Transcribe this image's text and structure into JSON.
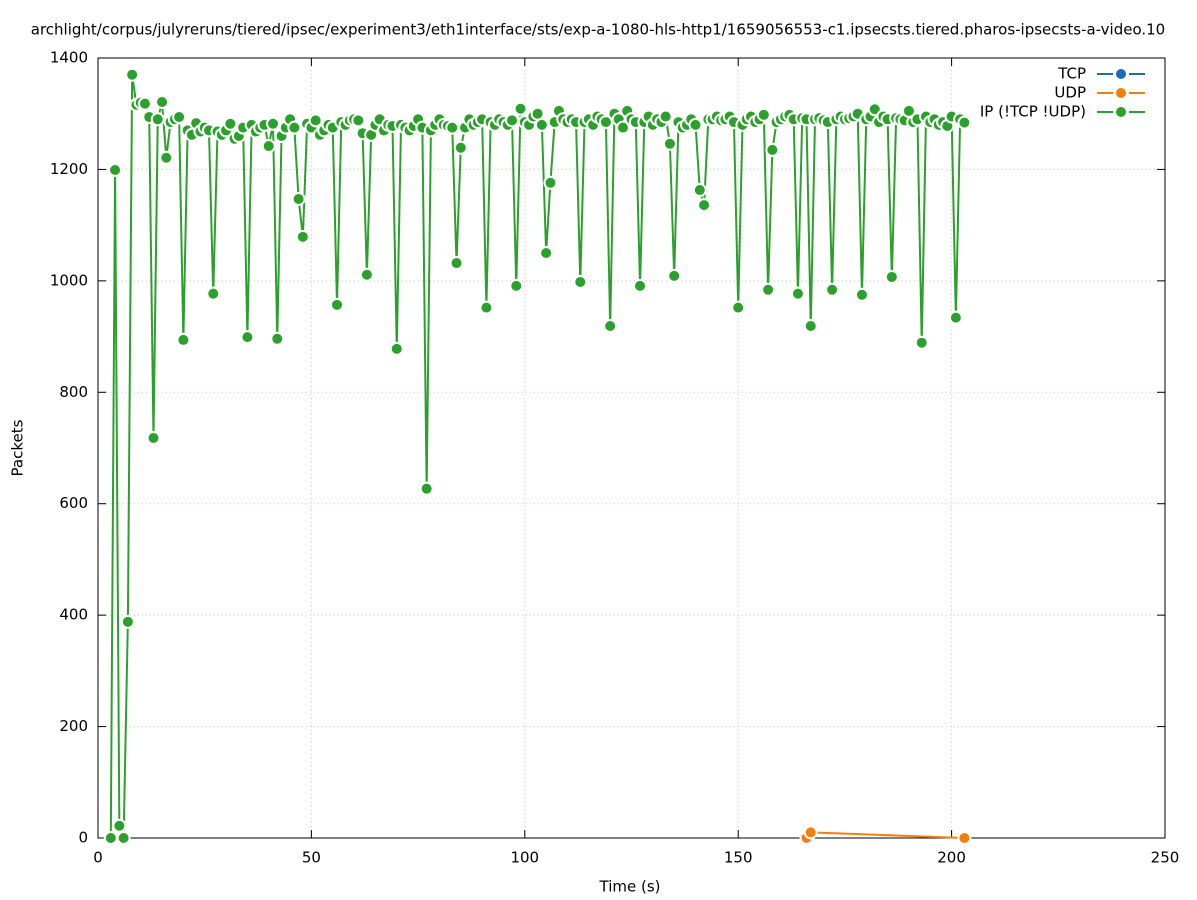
{
  "chart_data": {
    "type": "line",
    "title": "archlight/corpus/julyreruns/tiered/ipsec/experiment3/eth1interface/sts/exp-a-1080-hls-http1/1659056553-c1.ipsecsts.tiered.pharos-ipsecsts-a-video.10",
    "x_label": "Time (s)",
    "y_label": "Packets",
    "xlim": [
      0,
      250
    ],
    "xticks": [
      0,
      50,
      100,
      150,
      200,
      250
    ],
    "ylim": [
      0,
      1400
    ],
    "yticks": [
      0,
      200,
      400,
      600,
      800,
      1000,
      1200,
      1400
    ],
    "grid": true,
    "legend": "top-right",
    "series": [
      {
        "name": "TCP",
        "color": "#1a6cb8",
        "x": [],
        "values": []
      },
      {
        "name": "UDP",
        "color": "#f07f10",
        "x": [
          166,
          167,
          203
        ],
        "values": [
          0,
          10,
          0
        ]
      },
      {
        "name": "IP (!TCP !UDP)",
        "color": "#2ca02c",
        "x": [
          3,
          4,
          5,
          6,
          7,
          8,
          9,
          10,
          11,
          12,
          13,
          14,
          15,
          16,
          17,
          18,
          19,
          20,
          21,
          22,
          23,
          24,
          25,
          26,
          27,
          28,
          29,
          30,
          31,
          32,
          33,
          34,
          35,
          36,
          37,
          38,
          39,
          40,
          41,
          42,
          43,
          44,
          45,
          46,
          47,
          48,
          49,
          50,
          51,
          52,
          53,
          54,
          55,
          56,
          57,
          58,
          59,
          60,
          61,
          62,
          63,
          64,
          65,
          66,
          67,
          68,
          69,
          70,
          71,
          72,
          73,
          74,
          75,
          76,
          77,
          78,
          79,
          80,
          81,
          82,
          83,
          84,
          85,
          86,
          87,
          88,
          89,
          90,
          91,
          92,
          93,
          94,
          95,
          96,
          97,
          98,
          99,
          100,
          101,
          102,
          103,
          104,
          105,
          106,
          107,
          108,
          109,
          110,
          111,
          112,
          113,
          114,
          115,
          116,
          117,
          118,
          119,
          120,
          121,
          122,
          123,
          124,
          125,
          126,
          127,
          128,
          129,
          130,
          131,
          132,
          133,
          134,
          135,
          136,
          137,
          138,
          139,
          140,
          141,
          142,
          143,
          144,
          145,
          146,
          147,
          148,
          149,
          150,
          151,
          152,
          153,
          154,
          155,
          156,
          157,
          158,
          159,
          160,
          161,
          162,
          163,
          164,
          165,
          166,
          167,
          168,
          169,
          170,
          171,
          172,
          173,
          174,
          175,
          176,
          177,
          178,
          179,
          180,
          181,
          182,
          183,
          184,
          185,
          186,
          187,
          188,
          189,
          190,
          191,
          192,
          193,
          194,
          195,
          196,
          197,
          198,
          199,
          200,
          201,
          202,
          203
        ],
        "values": [
          0,
          1199,
          22,
          0,
          388,
          1370,
          1316,
          1320,
          1318,
          1294,
          718,
          1290,
          1321,
          1221,
          1285,
          1290,
          1294,
          894,
          1270,
          1262,
          1283,
          1268,
          1275,
          1270,
          977,
          1268,
          1262,
          1270,
          1282,
          1255,
          1260,
          1275,
          899,
          1280,
          1268,
          1275,
          1280,
          1242,
          1282,
          896,
          1260,
          1275,
          1290,
          1275,
          1147,
          1079,
          1282,
          1275,
          1288,
          1262,
          1270,
          1280,
          1275,
          957,
          1285,
          1280,
          1288,
          1290,
          1288,
          1265,
          1011,
          1262,
          1280,
          1290,
          1270,
          1280,
          1278,
          878,
          1280,
          1275,
          1270,
          1278,
          1290,
          1275,
          627,
          1270,
          1280,
          1290,
          1280,
          1278,
          1275,
          1032,
          1239,
          1275,
          1290,
          1280,
          1285,
          1290,
          952,
          1285,
          1280,
          1290,
          1285,
          1280,
          1288,
          991,
          1309,
          1285,
          1280,
          1295,
          1300,
          1280,
          1050,
          1176,
          1285,
          1305,
          1290,
          1285,
          1290,
          1285,
          998,
          1285,
          1290,
          1280,
          1295,
          1290,
          1285,
          919,
          1300,
          1290,
          1275,
          1305,
          1290,
          1285,
          991,
          1285,
          1295,
          1280,
          1290,
          1285,
          1295,
          1246,
          1009,
          1285,
          1275,
          1280,
          1290,
          1280,
          1163,
          1136,
          1290,
          1290,
          1295,
          1288,
          1290,
          1295,
          1285,
          952,
          1280,
          1290,
          1295,
          1285,
          1290,
          1298,
          984,
          1235,
          1285,
          1290,
          1295,
          1298,
          1290,
          977,
          1292,
          1290,
          919,
          1290,
          1292,
          1288,
          1285,
          984,
          1290,
          1295,
          1290,
          1292,
          1295,
          1300,
          975,
          1290,
          1295,
          1308,
          1285,
          1295,
          1290,
          1007,
          1292,
          1290,
          1288,
          1305,
          1285,
          1290,
          889,
          1295,
          1285,
          1290,
          1280,
          1285,
          1278,
          1295,
          934,
          1290,
          1284
        ]
      }
    ]
  }
}
